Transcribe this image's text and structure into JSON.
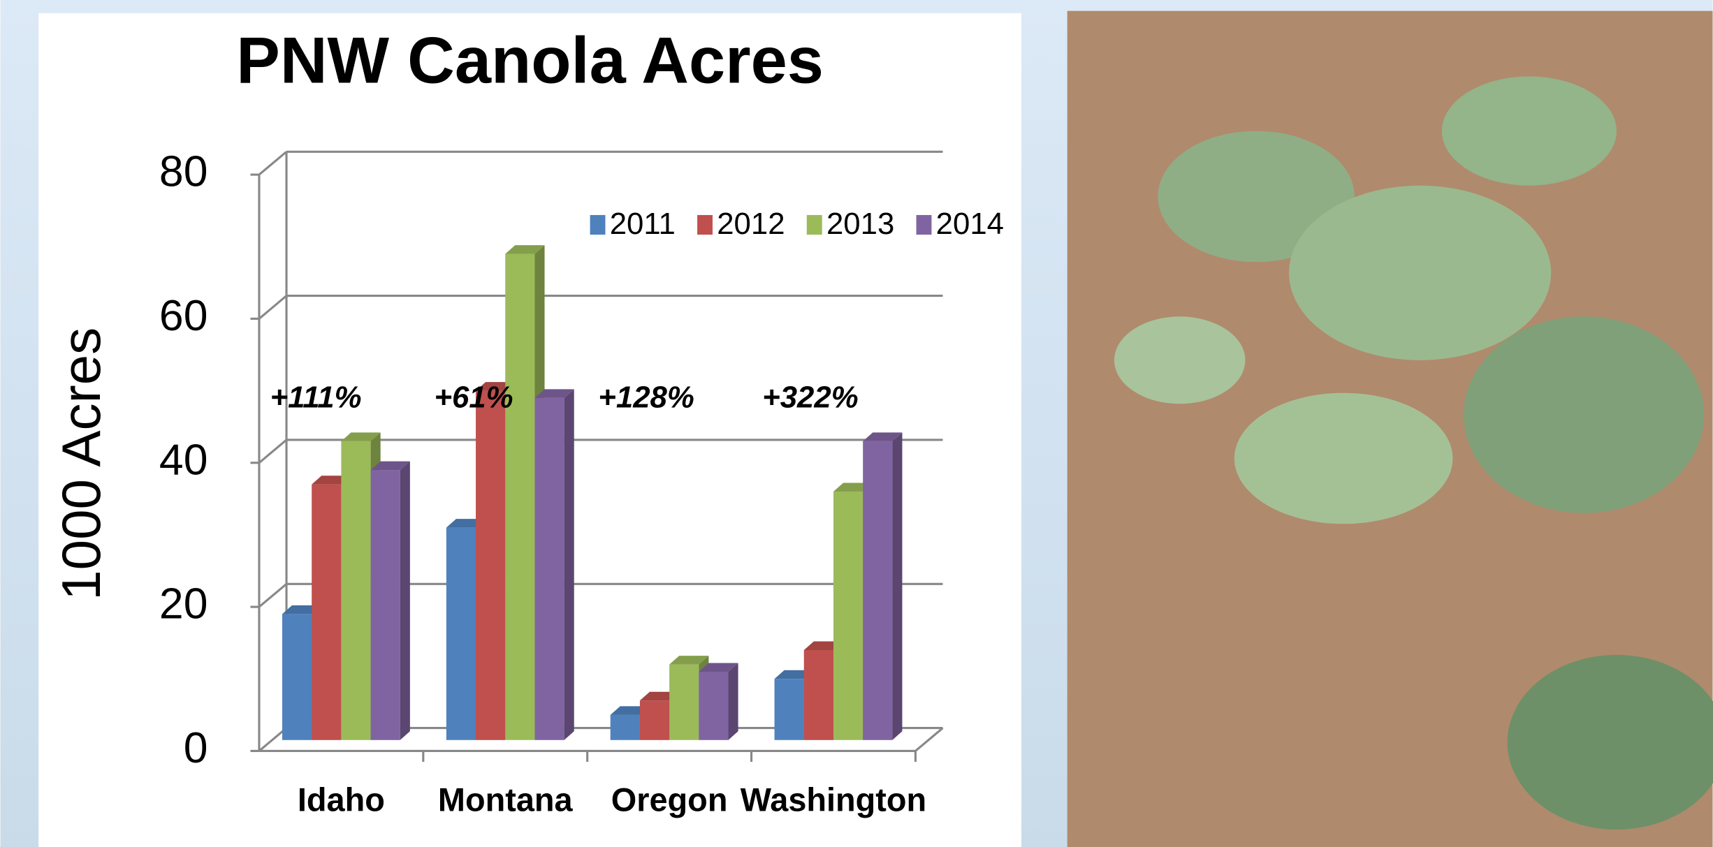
{
  "chart_data": {
    "type": "bar",
    "title": "PNW Canola Acres",
    "y_label": "1000 Acres",
    "categories": [
      "Idaho",
      "Montana",
      "Oregon",
      "Washington"
    ],
    "series": [
      {
        "name": "2011",
        "color": "#4f81bd",
        "values": [
          19,
          31,
          5,
          10
        ]
      },
      {
        "name": "2012",
        "color": "#c0504d",
        "values": [
          37,
          50,
          7,
          14
        ]
      },
      {
        "name": "2013",
        "color": "#9bbb59",
        "values": [
          43,
          69,
          12,
          36
        ]
      },
      {
        "name": "2014",
        "color": "#8064a2",
        "values": [
          39,
          49,
          11,
          43
        ]
      }
    ],
    "annotations": [
      "+111%",
      "+61%",
      "+128%",
      "+322%"
    ],
    "ylim": [
      0,
      80
    ],
    "yticks": [
      0,
      20,
      40,
      60,
      80
    ],
    "grid": true,
    "legend": "top-right"
  }
}
